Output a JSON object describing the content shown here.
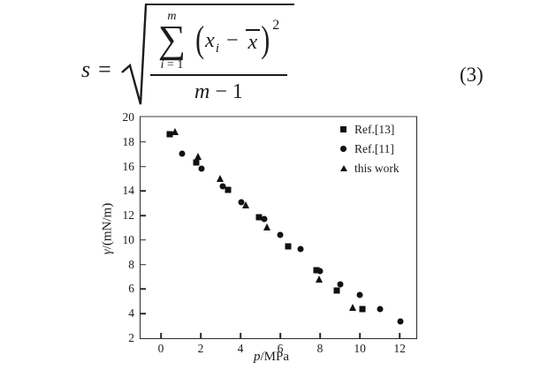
{
  "equation": {
    "lhs": "s",
    "equals": "=",
    "sum_upper": "m",
    "sum_symbol": "∑",
    "sum_lower_var": "i",
    "sum_lower_rest": " = 1",
    "open_paren": "(",
    "x_var": "x",
    "x_sub": "i",
    "minus": "−",
    "xbar_var": "x",
    "close_paren": ")",
    "exponent": "2",
    "den_var": "m",
    "den_rest": " − 1",
    "number": "(3)"
  },
  "chart_data": {
    "type": "scatter",
    "title": "",
    "xlabel": "p/MPa",
    "ylabel": "γ/(mN/m)",
    "xlabel_var": "p",
    "xlabel_rest": "/MPa",
    "ylabel_var": "γ",
    "ylabel_rest": "/(mN/m)",
    "xlim": [
      -1.02,
      12.84
    ],
    "ylim": [
      2,
      20
    ],
    "xticks": [
      0,
      2,
      4,
      6,
      8,
      10,
      12
    ],
    "yticks": [
      2,
      4,
      6,
      8,
      10,
      12,
      14,
      16,
      18,
      20
    ],
    "grid": false,
    "legend_position": "top-right",
    "marker_color": "#111111",
    "series": [
      {
        "name": "Ref.[13]",
        "marker": "square",
        "points": [
          [
            0.45,
            18.65
          ],
          [
            1.8,
            16.35
          ],
          [
            3.4,
            14.1
          ],
          [
            4.95,
            11.85
          ],
          [
            6.4,
            9.5
          ],
          [
            7.8,
            7.55
          ],
          [
            8.85,
            5.9
          ],
          [
            10.15,
            4.4
          ]
        ]
      },
      {
        "name": "Ref.[11]",
        "marker": "circle",
        "points": [
          [
            1.05,
            17.05
          ],
          [
            2.05,
            15.8
          ],
          [
            3.1,
            14.35
          ],
          [
            4.05,
            13.1
          ],
          [
            5.2,
            11.75
          ],
          [
            6.0,
            10.4
          ],
          [
            7.0,
            9.3
          ],
          [
            8.0,
            7.45
          ],
          [
            9.0,
            6.4
          ],
          [
            10.0,
            5.55
          ],
          [
            11.0,
            4.4
          ],
          [
            12.05,
            3.35
          ]
        ]
      },
      {
        "name": "this work",
        "marker": "triangle",
        "points": [
          [
            0.7,
            18.85
          ],
          [
            1.85,
            16.85
          ],
          [
            3.0,
            15.05
          ],
          [
            4.25,
            12.9
          ],
          [
            5.35,
            11.1
          ],
          [
            7.95,
            6.8
          ],
          [
            9.65,
            4.55
          ]
        ]
      }
    ]
  }
}
